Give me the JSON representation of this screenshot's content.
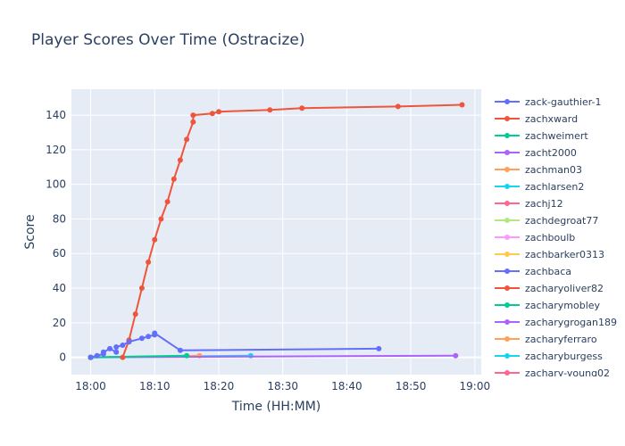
{
  "chart_data": {
    "type": "line",
    "title": "Player Scores Over Time (Ostracize)",
    "xlabel": "Time (HH:MM)",
    "ylabel": "Score",
    "x_unit": "time HH:MM",
    "xlim": [
      "17:57",
      "19:01"
    ],
    "ylim": [
      -10,
      155
    ],
    "x_ticks": [
      "18:00",
      "18:10",
      "18:20",
      "18:30",
      "18:40",
      "18:50",
      "19:00"
    ],
    "y_ticks": [
      0,
      20,
      40,
      60,
      80,
      100,
      120,
      140
    ],
    "grid": true,
    "legend_position": "right",
    "series": [
      {
        "name": "zack-gauthier-1",
        "color": "#636efa",
        "x": [
          "18:00",
          "18:01",
          "18:02",
          "18:02",
          "18:03",
          "18:04",
          "18:04",
          "18:05",
          "18:06",
          "18:08",
          "18:09",
          "18:10",
          "18:10",
          "18:14",
          "18:45"
        ],
        "y": [
          0,
          1,
          2,
          3,
          5,
          3,
          6,
          7,
          9,
          11,
          12,
          13,
          14,
          4,
          5
        ]
      },
      {
        "name": "zachxward",
        "color": "#ef553b",
        "x": [
          "18:05",
          "18:06",
          "18:07",
          "18:08",
          "18:09",
          "18:10",
          "18:11",
          "18:12",
          "18:13",
          "18:14",
          "18:15",
          "18:16",
          "18:16",
          "18:19",
          "18:20",
          "18:28",
          "18:33",
          "18:48",
          "18:58"
        ],
        "y": [
          0,
          10,
          25,
          40,
          55,
          68,
          80,
          90,
          103,
          114,
          126,
          136,
          140,
          141,
          142,
          143,
          144,
          145,
          146
        ]
      },
      {
        "name": "zachweimert",
        "color": "#00cc96",
        "x": [
          "18:00",
          "18:15"
        ],
        "y": [
          0,
          1
        ]
      },
      {
        "name": "zacht2000",
        "color": "#ab63fa",
        "x": [
          "18:00",
          "18:57"
        ],
        "y": [
          0,
          1
        ]
      },
      {
        "name": "zachman03",
        "color": "#ffa15a",
        "x": [
          "18:00",
          "18:17"
        ],
        "y": [
          0,
          1
        ]
      },
      {
        "name": "zachlarsen2",
        "color": "#19d3f3",
        "x": [
          "18:00",
          "18:25"
        ],
        "y": [
          0,
          1
        ]
      },
      {
        "name": "zachj12",
        "color": "#ff6692",
        "x": [
          "18:00"
        ],
        "y": [
          0
        ]
      },
      {
        "name": "zachdegroat77",
        "color": "#b6e880",
        "x": [
          "18:00"
        ],
        "y": [
          0
        ]
      },
      {
        "name": "zachboulb",
        "color": "#ff97ff",
        "x": [
          "18:00"
        ],
        "y": [
          0
        ]
      },
      {
        "name": "zachbarker0313",
        "color": "#fecb52",
        "x": [
          "18:00"
        ],
        "y": [
          0
        ]
      },
      {
        "name": "zachbaca",
        "color": "#636efa",
        "x": [
          "18:00"
        ],
        "y": [
          0
        ]
      },
      {
        "name": "zacharyoliver82",
        "color": "#ef553b",
        "x": [
          "18:00"
        ],
        "y": [
          0
        ]
      },
      {
        "name": "zacharymobley",
        "color": "#00cc96",
        "x": [
          "18:00"
        ],
        "y": [
          0
        ]
      },
      {
        "name": "zacharygrogan189",
        "color": "#ab63fa",
        "x": [
          "18:00"
        ],
        "y": [
          0
        ]
      },
      {
        "name": "zacharyferraro",
        "color": "#ffa15a",
        "x": [
          "18:00"
        ],
        "y": [
          0
        ]
      },
      {
        "name": "zacharyburgess",
        "color": "#19d3f3",
        "x": [
          "18:00"
        ],
        "y": [
          0
        ]
      },
      {
        "name": "zachary-young02",
        "color": "#ff6692",
        "x": [
          "18:00"
        ],
        "y": [
          0
        ]
      }
    ]
  }
}
